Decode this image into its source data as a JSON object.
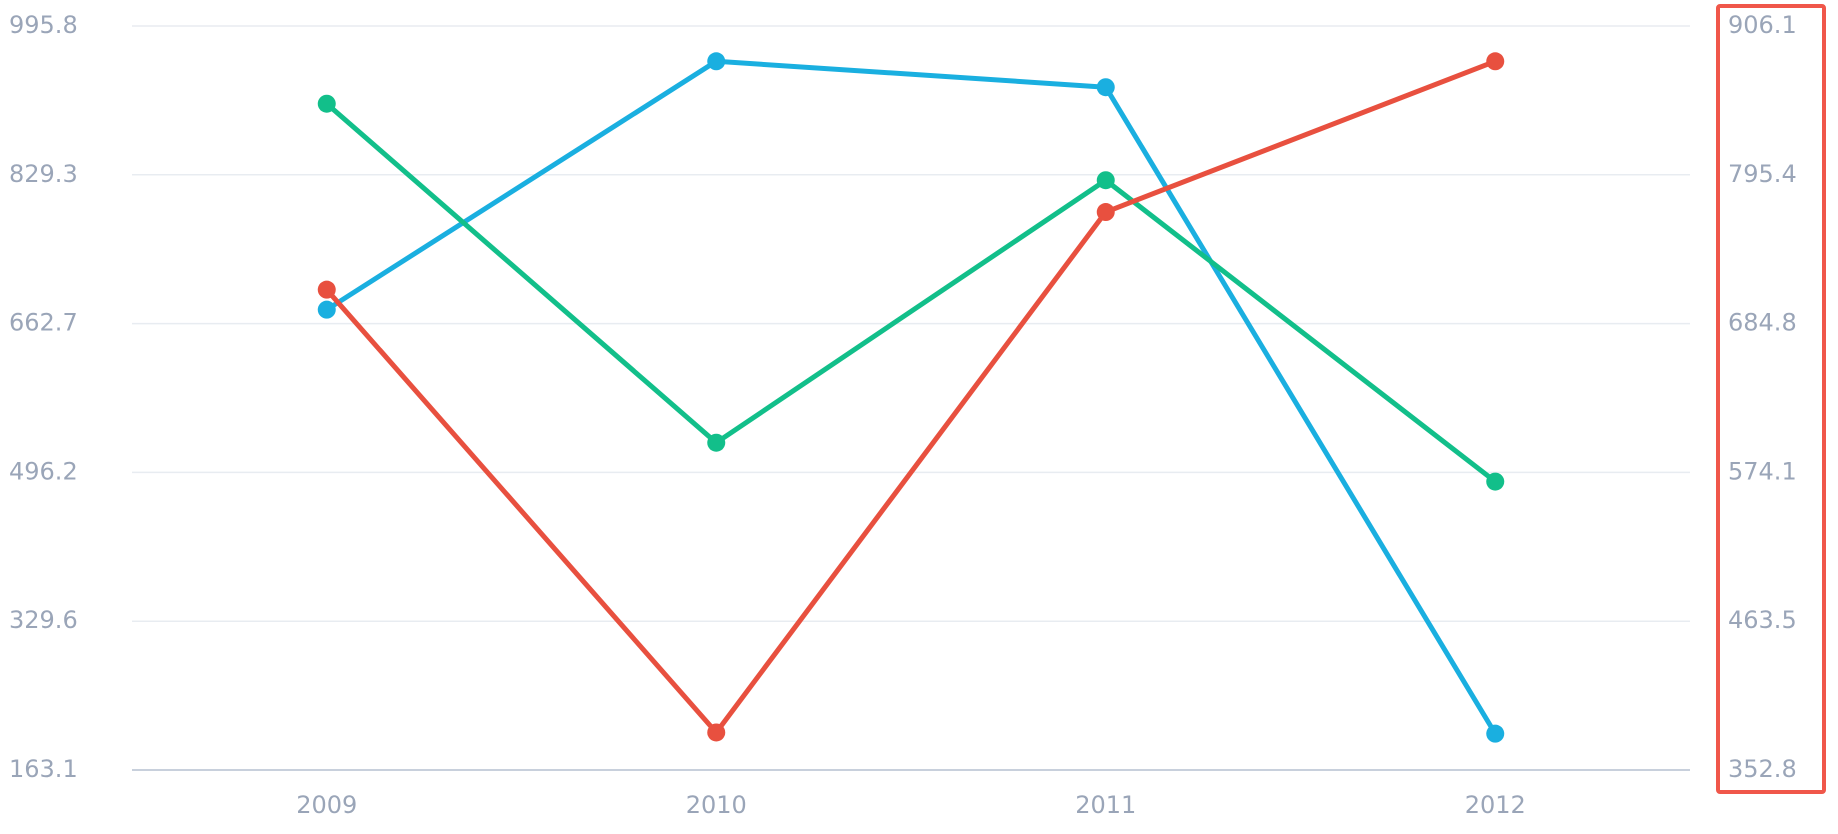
{
  "chart_data": {
    "type": "line",
    "categories": [
      "2009",
      "2010",
      "2011",
      "2012"
    ],
    "series": [
      {
        "color": "#1aafe0",
        "values": [
          678.3,
          956.3,
          927.3,
          203.8
        ]
      },
      {
        "color": "#12bf8a",
        "values": [
          908.8,
          529.4,
          823.2,
          485.9
        ]
      },
      {
        "color": "#e8503f",
        "values": [
          700.7,
          205.1,
          787.6,
          956.3
        ]
      }
    ],
    "ylim": [
      163.1,
      995.8
    ],
    "yticks": [
      163.1,
      329.6,
      496.2,
      662.7,
      829.3,
      995.8
    ],
    "y2lim": [
      352.8,
      906.1
    ],
    "y2ticks": [
      352.8,
      463.5,
      574.1,
      684.8,
      795.4,
      906.1
    ],
    "grid": true
  }
}
